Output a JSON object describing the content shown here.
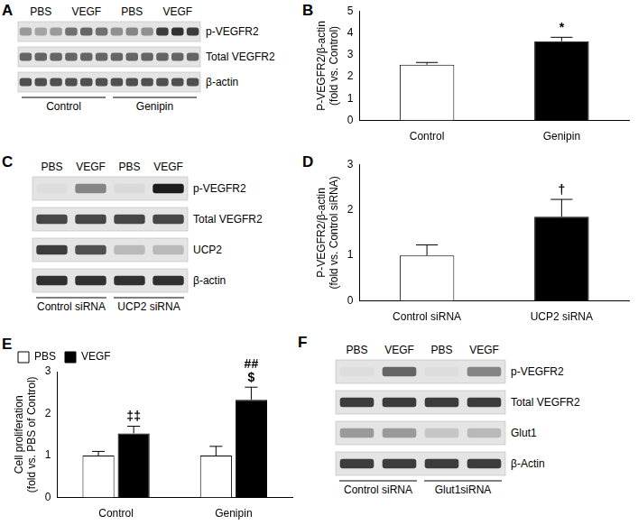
{
  "chart_data": [
    {
      "panel": "B",
      "type": "bar",
      "y_label": [
        "P-VEGFR2/β-actin",
        "(fold vs. Control)"
      ],
      "categories": [
        "Control",
        "Genipin"
      ],
      "values": [
        2.55,
        3.62
      ],
      "errors": [
        0.1,
        0.18
      ],
      "colors": [
        "#ffffff",
        "#000000"
      ],
      "ylim": [
        0,
        5
      ],
      "yticks": [
        0,
        1,
        2,
        3,
        4,
        5
      ],
      "grid": false,
      "annotations": [
        {
          "category": "Genipin",
          "text": "*"
        }
      ]
    },
    {
      "panel": "D",
      "type": "bar",
      "y_label": [
        "P-VEGFR2/β-actin",
        "(fold vs. Control siRNA)"
      ],
      "categories": [
        "Control siRNA",
        "UCP2 siRNA"
      ],
      "values": [
        1.0,
        1.85
      ],
      "errors": [
        0.23,
        0.38
      ],
      "colors": [
        "#ffffff",
        "#000000"
      ],
      "ylim": [
        0,
        3
      ],
      "yticks": [
        0,
        1,
        2,
        3
      ],
      "grid": false,
      "annotations": [
        {
          "category": "UCP2 siRNA",
          "text": "†"
        }
      ]
    },
    {
      "panel": "E",
      "type": "bar",
      "y_label": [
        "Cell proliferation",
        "(fold vs. PBS of Control)"
      ],
      "categories": [
        "Control",
        "Genipin"
      ],
      "series": [
        {
          "name": "PBS",
          "color": "#ffffff",
          "values": [
            1.0,
            1.0
          ],
          "errors": [
            0.1,
            0.22
          ]
        },
        {
          "name": "VEGF",
          "color": "#000000",
          "values": [
            1.53,
            2.33
          ],
          "errors": [
            0.17,
            0.3
          ]
        }
      ],
      "legend": "top-left",
      "ylim": [
        0,
        3
      ],
      "yticks": [
        0,
        1,
        2,
        3
      ],
      "grid": false,
      "annotations": [
        {
          "category": "Control",
          "series": "VEGF",
          "text": "‡‡"
        },
        {
          "category": "Genipin",
          "series": "VEGF",
          "text": "$"
        },
        {
          "category": "Genipin",
          "series": "VEGF",
          "text": "##"
        }
      ]
    }
  ],
  "blots": [
    {
      "panel": "A",
      "conditions": [
        "PBS",
        "VEGF",
        "PBS",
        "VEGF"
      ],
      "rows": [
        "p-VEGFR2",
        "Total VEGFR2",
        "β-actin"
      ],
      "groups": [
        "Control",
        "Genipin"
      ]
    },
    {
      "panel": "C",
      "conditions": [
        "PBS",
        "VEGF",
        "PBS",
        "VEGF"
      ],
      "rows": [
        "p-VEGFR2",
        "Total VEGFR2",
        "UCP2",
        "β-actin"
      ],
      "groups": [
        "Control siRNA",
        "UCP2 siRNA"
      ]
    },
    {
      "panel": "F",
      "conditions": [
        "PBS",
        "VEGF",
        "PBS",
        "VEGF"
      ],
      "rows": [
        "p-VEGFR2",
        "Total VEGFR2",
        "Glut1",
        "β-Actin"
      ],
      "groups": [
        "Control siRNA",
        "Glut1siRNA"
      ]
    }
  ]
}
